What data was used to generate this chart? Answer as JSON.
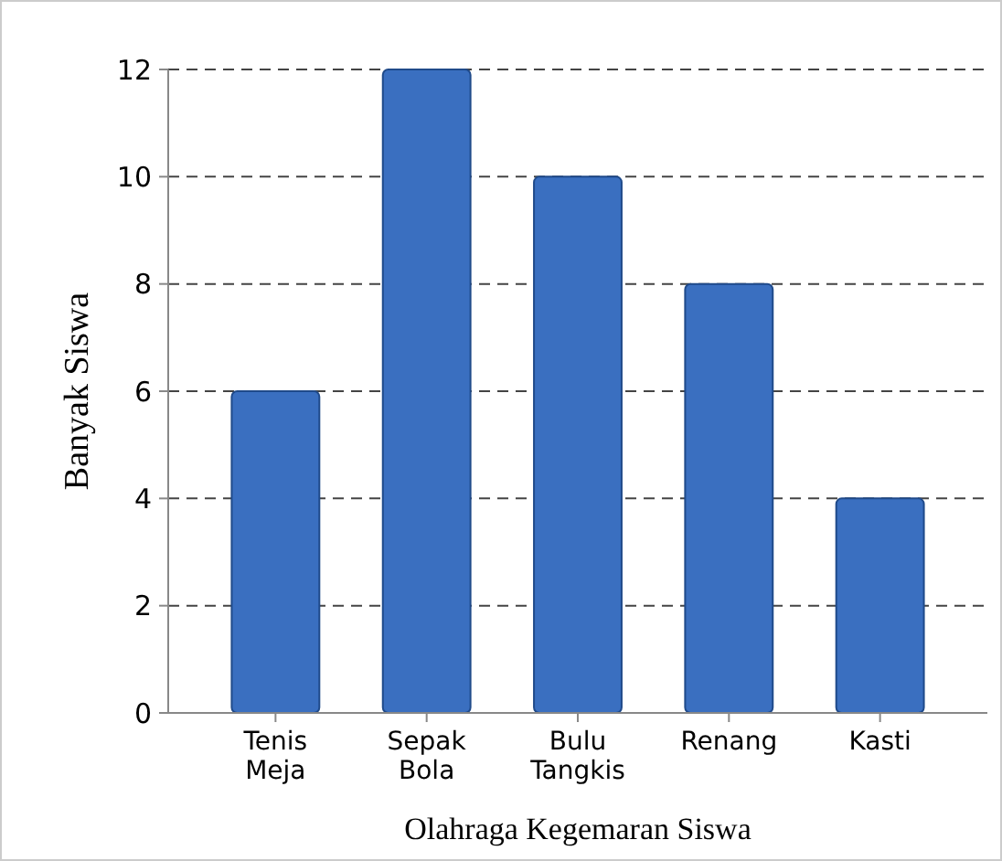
{
  "chart_data": {
    "type": "bar",
    "xlabel": "Olahraga Kegemaran Siswa",
    "ylabel": "Banyak Siswa",
    "categories": [
      "Tenis Meja",
      "Sepak Bola",
      "Bulu Tangkis",
      "Renang",
      "Kasti"
    ],
    "values": [
      6,
      12,
      10,
      8,
      4
    ],
    "color": "#3a6fc0",
    "ylim": [
      0,
      12
    ],
    "yticks": [
      0,
      2,
      4,
      6,
      8,
      10,
      12
    ],
    "grid": "y",
    "line_style": "dashed"
  }
}
